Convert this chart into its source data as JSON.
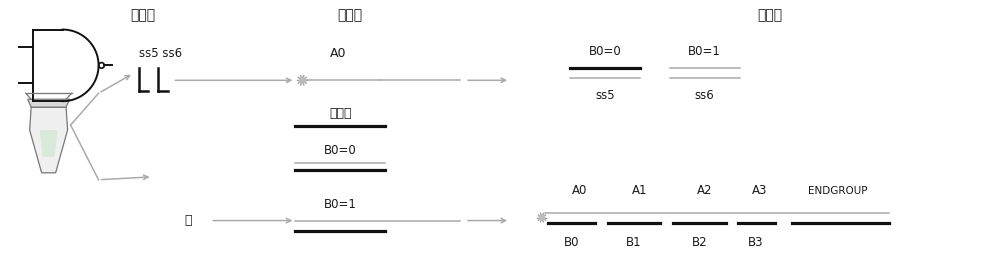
{
  "bg_color": "#ffffff",
  "text_color": "#1a1a1a",
  "gray_color": "#888888",
  "dark_color": "#111111",
  "line_gray": "#aaaaaa",
  "title_top_left": "输入链",
  "title_top_mid": "底物链",
  "title_top_right": "结果链",
  "label_ss5ss6": "ss5 ss6",
  "label_A0": "A0",
  "label_jia": "加数等",
  "label_B0_0_mid": "B0=0",
  "label_B0_1_mid": "B0=1",
  "label_wu": "无",
  "label_B0_0_right": "B0=0",
  "label_B0_1_right": "B0=1",
  "label_ss5": "ss5",
  "label_ss6": "ss6",
  "label_A0r": "A0",
  "label_A1": "A1",
  "label_A2": "A2",
  "label_A3": "A3",
  "label_ENDGROUP": "ENDGROUP",
  "label_B0": "B0",
  "label_B1": "B1",
  "label_B2": "B2",
  "label_B3": "B3",
  "figsize": [
    10.0,
    2.73
  ],
  "dpi": 100,
  "xlim": [
    0,
    10
  ],
  "ylim": [
    0,
    2.73
  ]
}
